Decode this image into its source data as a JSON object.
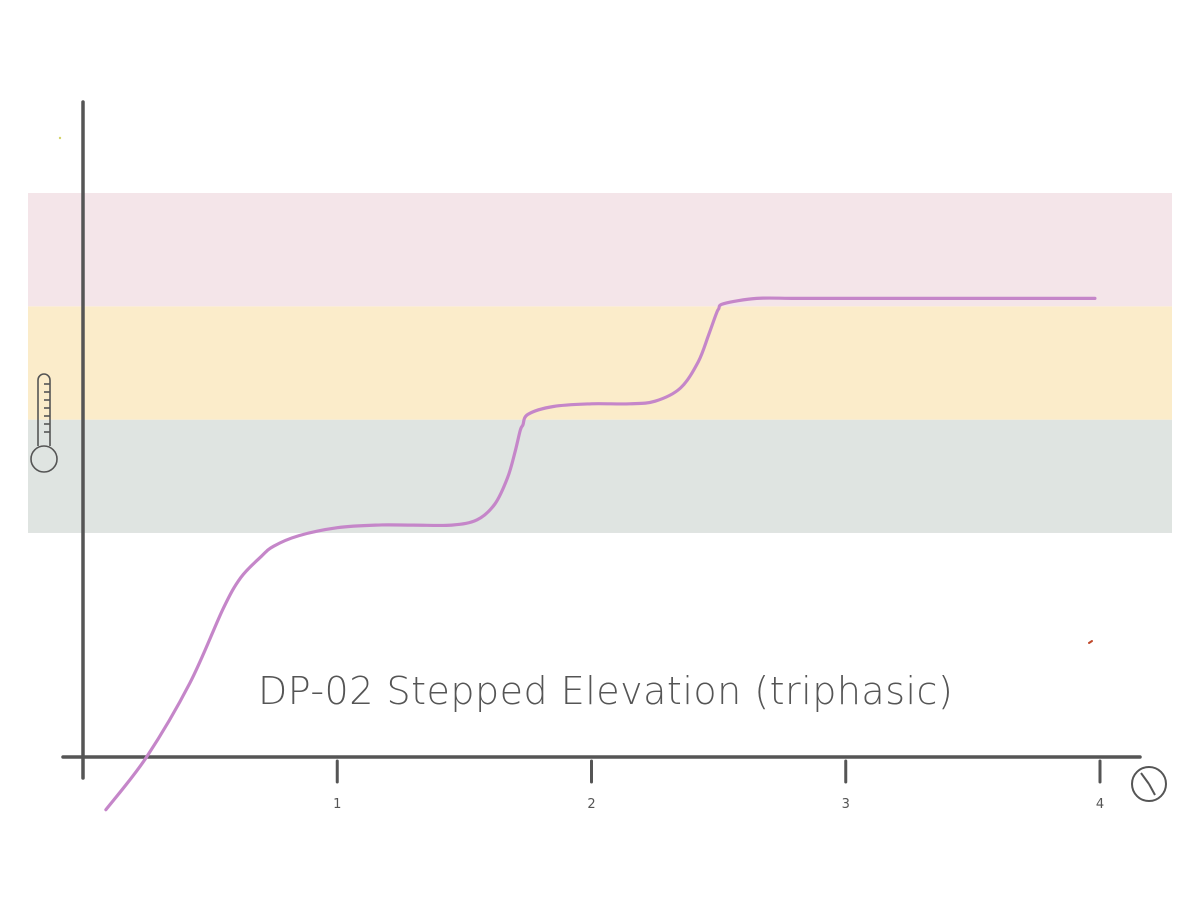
{
  "chart_data": {
    "type": "line",
    "title": "DP-02 Stepped Elevation (triphasic)",
    "xlabel": "",
    "ylabel": "",
    "x_tick_labels": [
      "1",
      "2",
      "3",
      "4"
    ],
    "x_ticks": [
      1,
      2,
      3,
      4
    ],
    "xlim": [
      0,
      4
    ],
    "ylim": [
      0,
      1
    ],
    "grid": false,
    "legend": "none",
    "bands": [
      {
        "from": 0.425,
        "to": 0.64,
        "color": "#dfe4e1"
      },
      {
        "from": 0.64,
        "to": 0.855,
        "color": "#fbecca"
      },
      {
        "from": 0.855,
        "to": 1.07,
        "color": "#f4e5e9"
      }
    ],
    "series": [
      {
        "color": "#c586c9",
        "x": [
          0.09,
          0.25,
          0.42,
          0.55,
          0.62,
          0.7,
          0.75,
          0.85,
          1.0,
          1.15,
          1.3,
          1.45,
          1.55,
          1.62,
          1.67,
          1.7,
          1.72,
          1.73,
          1.75,
          1.85,
          2.0,
          2.15,
          2.25,
          2.35,
          2.42,
          2.46,
          2.49,
          2.5,
          2.52,
          2.65,
          2.8,
          3.0,
          3.2,
          3.4,
          3.6,
          3.8,
          3.98
        ],
        "y": [
          -0.1,
          0.0,
          0.14,
          0.28,
          0.34,
          0.38,
          0.4,
          0.42,
          0.435,
          0.44,
          0.44,
          0.44,
          0.45,
          0.48,
          0.53,
          0.58,
          0.62,
          0.63,
          0.65,
          0.665,
          0.67,
          0.67,
          0.675,
          0.7,
          0.75,
          0.8,
          0.84,
          0.85,
          0.86,
          0.87,
          0.87,
          0.87,
          0.87,
          0.87,
          0.87,
          0.87,
          0.87
        ]
      }
    ]
  },
  "colors": {
    "axis": "#555555",
    "line": "#c586c9"
  },
  "icons": {
    "y_axis_icon": "thermometer-icon",
    "x_axis_icon": "stopwatch-icon"
  }
}
